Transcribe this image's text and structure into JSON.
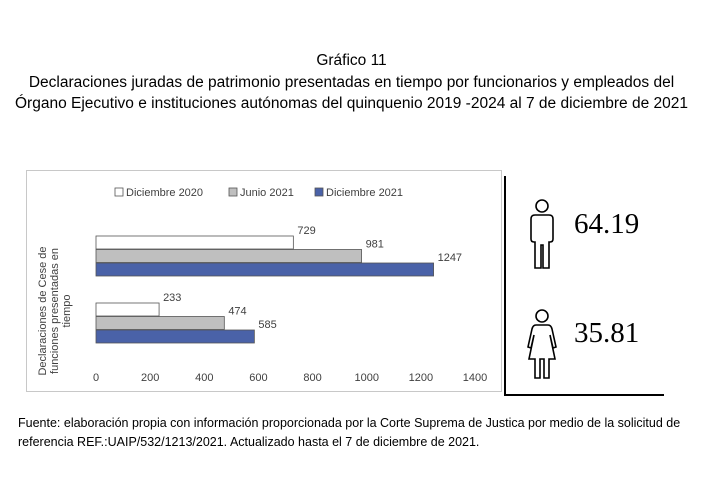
{
  "heading": {
    "number": "Gráfico 11",
    "title": "Declaraciones juradas de patrimonio presentadas en tiempo por funcionarios y empleados del Órgano Ejecutivo e instituciones autónomas del quinquenio 2019 -2024 al 7 de diciembre de 2021"
  },
  "chart_data": {
    "type": "bar",
    "orientation": "horizontal",
    "ylabel": "Declaraciones de Cese de funciones presentadas en tiempo",
    "xlabel": "",
    "xlim": [
      0,
      1400
    ],
    "xticks": [
      "0",
      "200",
      "400",
      "600",
      "800",
      "1000",
      "1200",
      "1400"
    ],
    "legend_position": "top",
    "grid": false,
    "series": [
      {
        "name": "Diciembre 2020",
        "color": "#ffffff",
        "values": [
          729,
          233
        ]
      },
      {
        "name": "Junio 2021",
        "color": "#bfbfbf",
        "values": [
          981,
          474
        ]
      },
      {
        "name": "Diciembre 2021",
        "color": "#4a62a8",
        "values": [
          1247,
          585
        ]
      }
    ]
  },
  "stats": {
    "male": {
      "value": "64.19",
      "icon": "male-person-icon"
    },
    "female": {
      "value": "35.81",
      "icon": "female-person-icon"
    }
  },
  "source": "Fuente: elaboración propia con información proporcionada por la Corte Suprema de Justica por medio de la solicitud de referencia REF.:UAIP/532/1213/2021. Actualizado hasta el 7 de diciembre de 2021."
}
